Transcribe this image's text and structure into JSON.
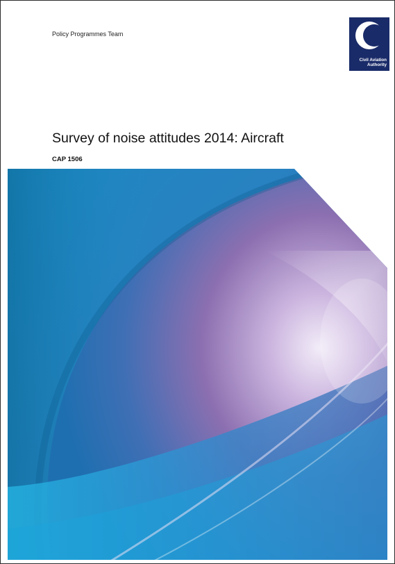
{
  "document": {
    "team": "Policy Programmes Team",
    "title": "Survey of noise attitudes 2014: Aircraft",
    "reference": "CAP 1506"
  },
  "logo": {
    "line1": "Civil Aviation",
    "line2": "Authority",
    "icon": "caa-crescent-icon",
    "color": "#1a2b69"
  },
  "cover_art": {
    "colors": [
      "#0f6fa8",
      "#29a5dc",
      "#7f5fa6",
      "#cdb6e0"
    ]
  }
}
